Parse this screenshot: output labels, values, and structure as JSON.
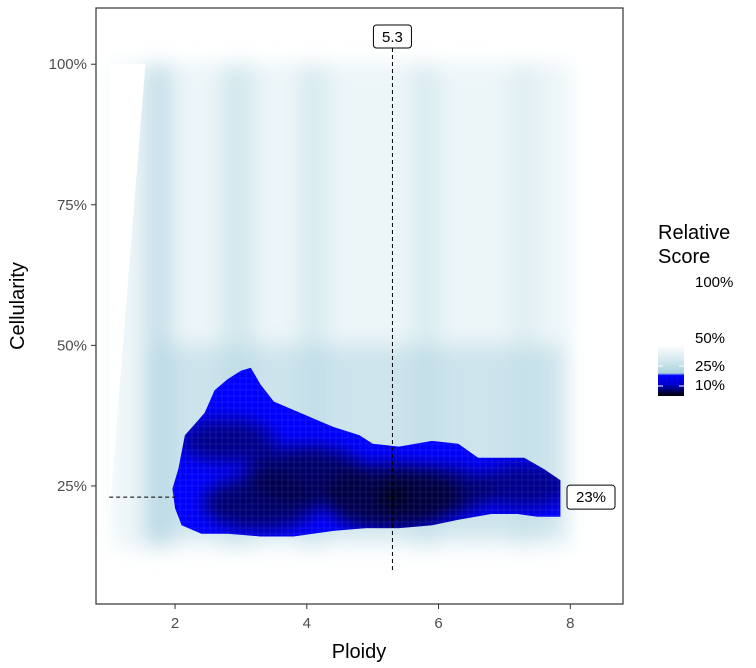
{
  "chart_data": {
    "type": "heatmap",
    "title": "",
    "xlabel": "Ploidy",
    "ylabel": "Cellularity",
    "xlim": [
      0.8,
      8.8
    ],
    "ylim": [
      0.04,
      1.1
    ],
    "x_ticks": [
      2,
      4,
      6,
      8
    ],
    "x_tick_labels": [
      "2",
      "4",
      "6",
      "8"
    ],
    "y_ticks": [
      0.25,
      0.5,
      0.75,
      1.0
    ],
    "y_tick_labels": [
      "25%",
      "50%",
      "75%",
      "100%"
    ],
    "grid": false,
    "panel_border": true,
    "heatmap_extent": {
      "x": [
        1.0,
        8.0
      ],
      "y": [
        0.14,
        1.0
      ]
    },
    "high_score_region_outline": [
      [
        1.96,
        0.245
      ],
      [
        2.05,
        0.28
      ],
      [
        2.15,
        0.34
      ],
      [
        2.3,
        0.36
      ],
      [
        2.45,
        0.38
      ],
      [
        2.6,
        0.42
      ],
      [
        2.8,
        0.44
      ],
      [
        3.0,
        0.455
      ],
      [
        3.15,
        0.46
      ],
      [
        3.3,
        0.43
      ],
      [
        3.5,
        0.4
      ],
      [
        3.8,
        0.385
      ],
      [
        4.1,
        0.37
      ],
      [
        4.4,
        0.355
      ],
      [
        4.8,
        0.34
      ],
      [
        5.0,
        0.325
      ],
      [
        5.4,
        0.32
      ],
      [
        5.9,
        0.33
      ],
      [
        6.3,
        0.325
      ],
      [
        6.6,
        0.3
      ],
      [
        7.0,
        0.3
      ],
      [
        7.3,
        0.3
      ],
      [
        7.6,
        0.28
      ],
      [
        7.85,
        0.26
      ],
      [
        7.85,
        0.195
      ],
      [
        7.5,
        0.195
      ],
      [
        7.2,
        0.2
      ],
      [
        6.8,
        0.2
      ],
      [
        6.3,
        0.19
      ],
      [
        5.9,
        0.18
      ],
      [
        5.4,
        0.175
      ],
      [
        4.9,
        0.175
      ],
      [
        4.4,
        0.17
      ],
      [
        3.8,
        0.16
      ],
      [
        3.3,
        0.16
      ],
      [
        2.8,
        0.165
      ],
      [
        2.4,
        0.165
      ],
      [
        2.1,
        0.18
      ],
      [
        2.0,
        0.21
      ]
    ],
    "score_peaks": [
      {
        "x": 5.3,
        "y": 0.23,
        "score": 1.0
      },
      {
        "x": 4.0,
        "y": 0.27,
        "score": 0.75
      },
      {
        "x": 3.3,
        "y": 0.22,
        "score": 0.7
      },
      {
        "x": 6.0,
        "y": 0.24,
        "score": 0.6
      },
      {
        "x": 7.3,
        "y": 0.25,
        "score": 0.45
      },
      {
        "x": 2.8,
        "y": 0.33,
        "score": 0.45
      }
    ],
    "optimum": {
      "ploidy": 5.3,
      "cellularity": 0.23
    },
    "annotations": {
      "ploidy_label": "5.3",
      "cellularity_label": "23%"
    },
    "legend": {
      "title_lines": [
        "Relative",
        "Score"
      ],
      "position": "right",
      "labels": [
        "100%",
        "50%",
        "25%",
        "10%"
      ],
      "levels": [
        1.0,
        0.5,
        0.25,
        0.1
      ]
    },
    "colors": {
      "background_low": "#ffffff",
      "light_blue": "#c9e2ea",
      "mid_blue": "#a9d0dd",
      "high_region": "#0000ff",
      "peak": "#000000",
      "reference_line": "#000000",
      "panel_border": "#333333"
    }
  }
}
